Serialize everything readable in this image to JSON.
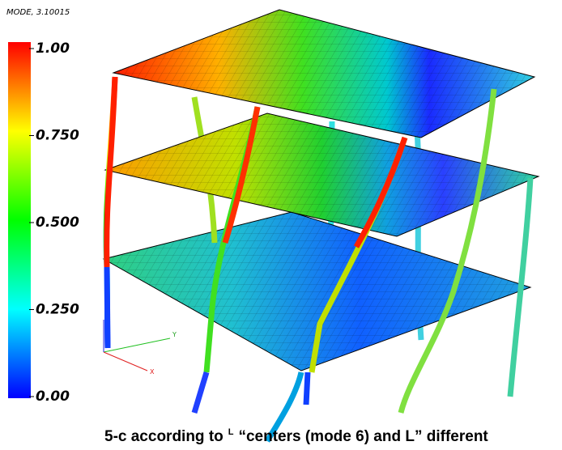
{
  "legend": {
    "title": "MODE, 3.10015",
    "ticks": [
      {
        "value": 1,
        "label": "1.00"
      },
      {
        "value": 0.75,
        "label": "0.750"
      },
      {
        "value": 0.5,
        "label": "0.500"
      },
      {
        "value": 0.25,
        "label": "0.250"
      },
      {
        "value": 0,
        "label": "0.00"
      }
    ]
  },
  "axes": {
    "x": "X",
    "y": "Y"
  },
  "caption": {
    "lead": "5-c according to",
    "sup": "L",
    "tail": "“centers (mode 6) and L” different"
  }
}
